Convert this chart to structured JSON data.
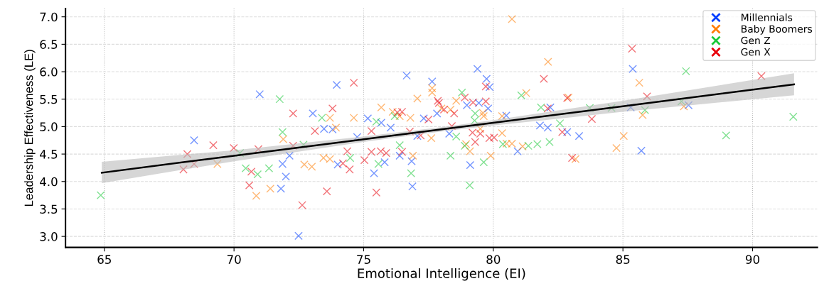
{
  "chart_data": {
    "type": "scatter",
    "xlabel": "Emotional Intelligence (EI)",
    "ylabel": "Leadership Effectiveness (LE)",
    "xlim": [
      63.5,
      92.5
    ],
    "ylim": [
      2.8,
      7.15
    ],
    "xticks": [
      65,
      70,
      75,
      80,
      85,
      90
    ],
    "yticks": [
      {
        "value": 3,
        "label": "3.0"
      },
      {
        "value": 3.5,
        "label": "3.5"
      },
      {
        "value": 4,
        "label": "4.0"
      },
      {
        "value": 4.5,
        "label": "4.5"
      },
      {
        "value": 5,
        "label": "5.0"
      },
      {
        "value": 5.5,
        "label": "5.5"
      },
      {
        "value": 6,
        "label": "6.0"
      },
      {
        "value": 6.5,
        "label": "6.5"
      },
      {
        "value": 7,
        "label": "7.0"
      }
    ],
    "grid": true,
    "legend": "top right",
    "marker": "cross",
    "series": [
      {
        "name": "Millennials",
        "color": "#023eff",
        "x": [
          68.46,
          71.81,
          71.87,
          70.99,
          73.96,
          76.66,
          77.64,
          79.39,
          79.74,
          79.86,
          79.44,
          78.98,
          79.8,
          77.83,
          77.32,
          75.16,
          75.68,
          76.04,
          81.8,
          82.1,
          80.5,
          82.2,
          73.04,
          73.47,
          73.8,
          85.38,
          85.3,
          87.53,
          72.14,
          72.0,
          72.49,
          74.0,
          74.75,
          75.4,
          75.81,
          76.39,
          76.85,
          76.88,
          77.07,
          78.3,
          79.11,
          80.94,
          82.85,
          83.31,
          85.71
        ],
        "values": [
          4.75,
          3.87,
          4.32,
          5.59,
          5.76,
          5.93,
          5.82,
          6.05,
          5.87,
          5.72,
          5.43,
          5.39,
          5.33,
          5.24,
          5.15,
          5.15,
          5.07,
          4.98,
          5.02,
          4.98,
          5.2,
          5.35,
          5.24,
          4.96,
          4.95,
          6.05,
          5.35,
          5.39,
          4.47,
          4.09,
          3.01,
          4.31,
          4.81,
          4.15,
          4.35,
          4.47,
          4.37,
          3.91,
          4.83,
          4.87,
          4.3,
          4.55,
          4.9,
          4.83,
          4.56
        ]
      },
      {
        "name": "Baby Boomers",
        "color": "#ff7c00",
        "x": [
          69.36,
          70.86,
          71.4,
          71.9,
          80.72,
          82.11,
          81.27,
          77.64,
          77.64,
          77.07,
          78.57,
          78.0,
          78.35,
          79.6,
          79.63,
          75.68,
          76.12,
          76.39,
          76.8,
          79.5,
          80.34,
          73.7,
          74.62,
          73.93,
          85.63,
          82.9,
          85.76,
          87.35,
          72.71,
          73.0,
          73.45,
          73.7,
          76.9,
          77.61,
          78.95,
          79.1,
          79.9,
          80.51,
          80.72,
          80.34,
          81.13,
          85.03,
          84.75,
          83.17
        ],
        "values": [
          4.32,
          3.74,
          3.87,
          4.77,
          6.96,
          6.18,
          5.61,
          5.7,
          5.62,
          5.51,
          5.47,
          5.33,
          5.31,
          5.25,
          5.19,
          5.35,
          5.27,
          5.19,
          5.16,
          4.96,
          5.19,
          5.16,
          5.16,
          4.98,
          5.8,
          5.53,
          5.21,
          5.37,
          4.31,
          4.27,
          4.43,
          4.41,
          4.47,
          4.79,
          4.68,
          4.55,
          4.47,
          4.69,
          4.69,
          4.88,
          4.64,
          4.83,
          4.61,
          4.41
        ]
      },
      {
        "name": "Gen Z",
        "color": "#1ac938",
        "x": [
          64.86,
          70.23,
          70.45,
          70.91,
          71.35,
          71.87,
          71.76,
          81.08,
          78.79,
          79.3,
          79.28,
          76.2,
          75.49,
          81.84,
          73.39,
          87.43,
          83.72,
          84.56,
          85.85,
          87.26,
          91.57,
          82.57,
          72.68,
          74.48,
          75.57,
          76.39,
          76.83,
          78.57,
          78.9,
          78.35,
          79.63,
          79.09,
          80.37,
          81.35,
          81.7,
          82.17,
          88.98
        ],
        "values": [
          3.75,
          4.52,
          4.24,
          4.13,
          4.24,
          4.9,
          5.5,
          5.57,
          5.62,
          5.24,
          5.11,
          5.19,
          5.09,
          5.35,
          5.16,
          6.01,
          5.34,
          5.34,
          5.3,
          5.46,
          5.18,
          5.06,
          4.67,
          4.43,
          4.32,
          4.66,
          4.15,
          4.82,
          4.65,
          4.47,
          4.35,
          3.93,
          4.68,
          4.65,
          4.68,
          4.72,
          4.84
        ]
      },
      {
        "name": "Gen X",
        "color": "#e8000b",
        "x": [
          69.99,
          69.2,
          68.2,
          68.46,
          68.05,
          70.94,
          70.67,
          70.59,
          81.95,
          74.62,
          79.71,
          78.9,
          77.86,
          77.9,
          79.22,
          79.71,
          78.1,
          78.49,
          77.5,
          76.3,
          76.48,
          75.3,
          76.78,
          78.4,
          82.1,
          72.28,
          73.8,
          73.12,
          85.35,
          90.34,
          85.93,
          82.85,
          83.8,
          72.28,
          72.63,
          73.58,
          74.2,
          74.46,
          74.37,
          75.03,
          75.3,
          75.66,
          75.87,
          75.49,
          76.48,
          77.2,
          79.3,
          79.2,
          79.5,
          79.85,
          80.03,
          82.66,
          83.04
        ],
        "values": [
          4.61,
          4.66,
          4.5,
          4.32,
          4.22,
          4.59,
          4.18,
          3.93,
          5.87,
          5.8,
          5.73,
          5.53,
          5.47,
          5.43,
          5.44,
          5.46,
          5.31,
          5.24,
          5.13,
          5.26,
          5.27,
          4.92,
          4.91,
          5.01,
          5.33,
          5.24,
          5.33,
          4.92,
          6.42,
          5.92,
          5.55,
          5.52,
          5.14,
          4.65,
          3.57,
          3.82,
          4.33,
          4.22,
          4.55,
          4.39,
          4.54,
          4.55,
          4.52,
          3.8,
          4.54,
          4.84,
          4.72,
          4.89,
          4.87,
          4.79,
          4.8,
          4.9,
          4.43
        ]
      },
      {
        "type": "line",
        "color": "#000000",
        "marker": "none",
        "x": [
          64.9,
          70,
          75,
          78,
          80,
          85,
          91.6
        ],
        "values": [
          4.16,
          4.47,
          4.77,
          4.95,
          5.07,
          5.37,
          5.77
        ],
        "lower": [
          3.97,
          4.37,
          4.72,
          4.91,
          5.02,
          5.27,
          5.57
        ],
        "upper": [
          4.36,
          4.57,
          4.82,
          4.99,
          5.12,
          5.47,
          5.97
        ]
      }
    ]
  }
}
